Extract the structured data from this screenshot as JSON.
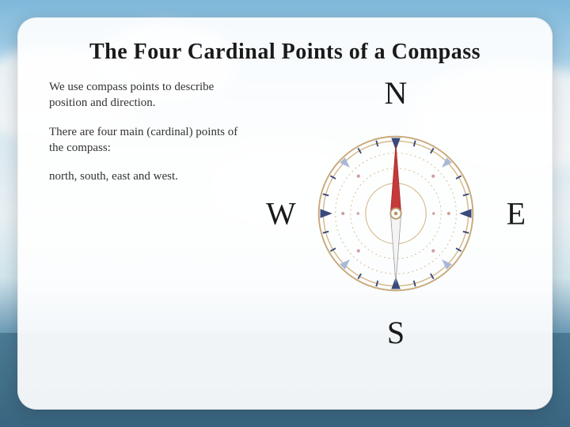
{
  "title": "The Four Cardinal Points of a Compass",
  "title_fontsize": 28,
  "paragraphs": {
    "p1": "We use compass points to describe position and direction.",
    "p2": "There are four main (cardinal) points of the compass:",
    "p3": "north, south, east and west."
  },
  "para_fontsize": 15,
  "compass": {
    "labels": {
      "n": "N",
      "s": "S",
      "e": "E",
      "w": "W"
    },
    "label_fontsize": 40,
    "diameter": 210,
    "colors": {
      "background": "#ffffff",
      "card_bg": "rgba(255,255,255,0.92)",
      "ring_outer": "#c9a97a",
      "ring_gold": "#d4b88a",
      "tick_dark": "#3a4a7a",
      "tick_light": "#aab8d8",
      "dot": "#cfa0a0",
      "needle_red": "#c63a3a",
      "needle_white": "#f0f0f0",
      "needle_outline": "#888",
      "center_ring": "#b89a6a",
      "text": "#1a1a1a"
    }
  },
  "bg": {
    "sky_top": "#7eb8da",
    "sky_mid": "#e8f0f4",
    "sea": "#3a6580"
  }
}
